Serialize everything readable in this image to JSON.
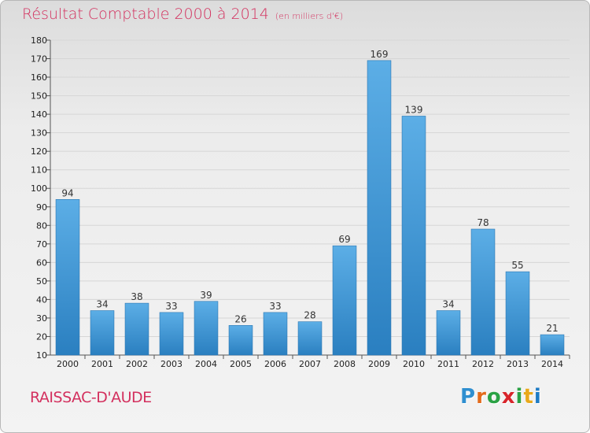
{
  "header": {
    "title": "Résultat Comptable 2000 à 2014",
    "unit": "(en milliers d'€)"
  },
  "footer": {
    "city": "RAISSAC-D'AUDE",
    "logo_letters": [
      "P",
      "r",
      "o",
      "x",
      "i",
      "t",
      "i"
    ],
    "logo_colors": [
      "#2f8fd0",
      "#e36b1c",
      "#2ba245",
      "#d8252b",
      "#2ba245",
      "#e9a91a",
      "#1f7cc4"
    ]
  },
  "chart_data": {
    "type": "bar",
    "title": "Résultat Comptable 2000 à 2014",
    "xlabel": "",
    "ylabel": "",
    "categories": [
      "2000",
      "2001",
      "2002",
      "2003",
      "2004",
      "2005",
      "2006",
      "2007",
      "2008",
      "2009",
      "2010",
      "2011",
      "2012",
      "2013",
      "2014"
    ],
    "values": [
      94,
      34,
      38,
      33,
      39,
      26,
      33,
      28,
      69,
      169,
      139,
      34,
      78,
      55,
      21
    ],
    "ylim": [
      10,
      180
    ],
    "yticks": [
      10,
      20,
      30,
      40,
      50,
      60,
      70,
      80,
      90,
      100,
      110,
      120,
      130,
      140,
      150,
      160,
      170,
      180
    ],
    "grid": true,
    "bar_color": "#4a9fdc"
  }
}
